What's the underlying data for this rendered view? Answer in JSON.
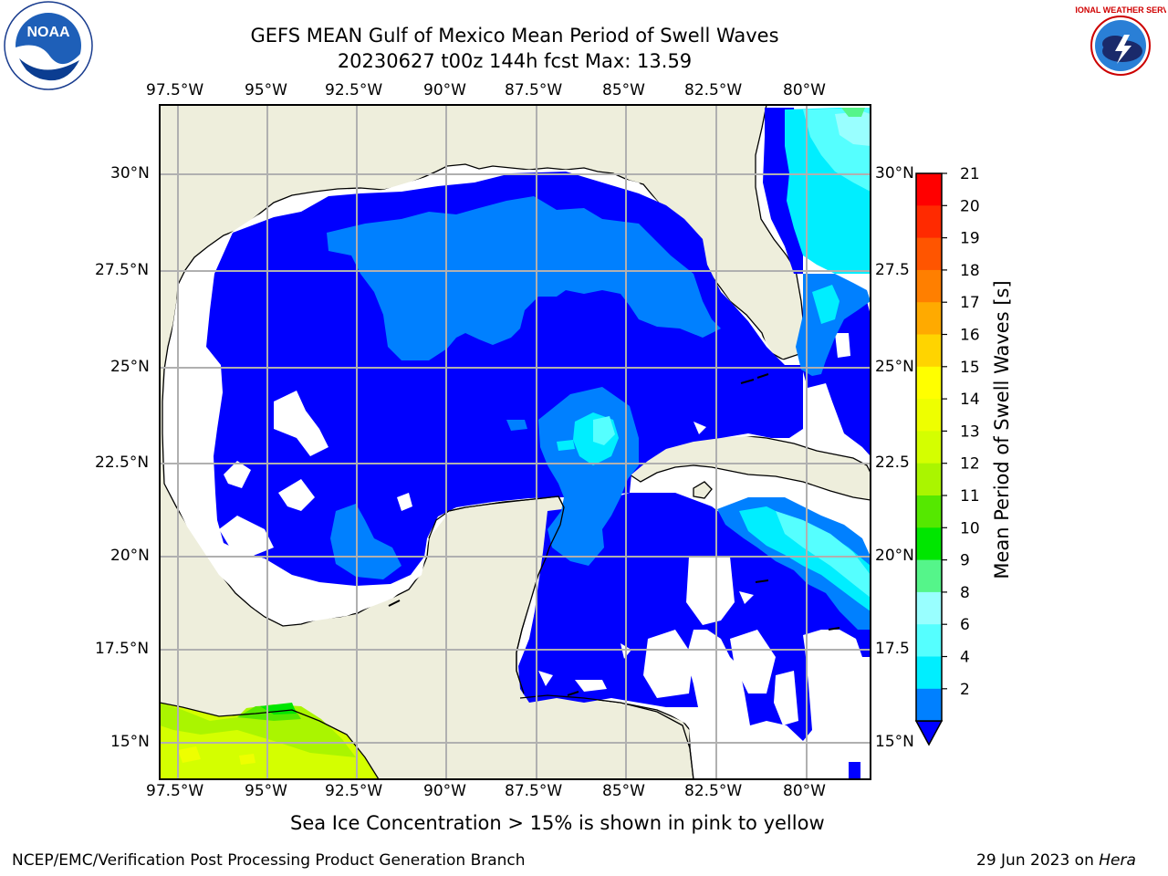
{
  "title": {
    "line1": "GEFS MEAN Gulf of Mexico Mean Period of Swell Waves",
    "line2": "20230627 t00z 144h fcst   Max: 13.59"
  },
  "axes": {
    "lon_labels": [
      "97.5°W",
      "95°W",
      "92.5°W",
      "90°W",
      "87.5°W",
      "85°W",
      "82.5°W",
      "80°W"
    ],
    "lat_labels": [
      "30°N",
      "27.5°N",
      "25°N",
      "22.5°N",
      "20°N",
      "17.5°N",
      "15°N"
    ],
    "right_lat_labels": [
      "30°N",
      "27.5",
      "25°N",
      "22.5",
      "20°N",
      "17.5",
      "15°N"
    ]
  },
  "colorbar": {
    "label": "Mean Period of Swell Waves [s]",
    "ticks": [
      "21",
      "20",
      "19",
      "18",
      "17",
      "16",
      "15",
      "14",
      "13",
      "12",
      "11",
      "10",
      "9",
      "8",
      "6",
      "4",
      "2"
    ],
    "colors": [
      "#ff0000",
      "#ff2a00",
      "#ff5500",
      "#ff7f00",
      "#ffaa00",
      "#ffd400",
      "#ffff00",
      "#eeff00",
      "#d4ff00",
      "#aaf500",
      "#55e800",
      "#00e600",
      "#55f58a",
      "#99ffff",
      "#55ffff",
      "#00eeff",
      "#0080ff"
    ],
    "extend_color": "#0000ff"
  },
  "note": "Sea Ice Concentration > 15% is shown in pink to yellow",
  "footer": {
    "left": "NCEP/EMC/Verification Post Processing Product Generation Branch",
    "date": "29 Jun 2023 on",
    "machine": "Hera"
  },
  "logos": {
    "noaa": "NOAA",
    "nws": "NATIONAL WEATHER SERVICE"
  },
  "colors": {
    "land": "#eeeedc",
    "deep_blue": "#0000ff",
    "mid_blue": "#0080ff",
    "cyan": "#00eeff",
    "light_cyan": "#55ffff",
    "pale_cyan": "#99ffff",
    "green": "#00e600",
    "yellow_green": "#d4ff00",
    "grid": "#aaaaaa"
  }
}
